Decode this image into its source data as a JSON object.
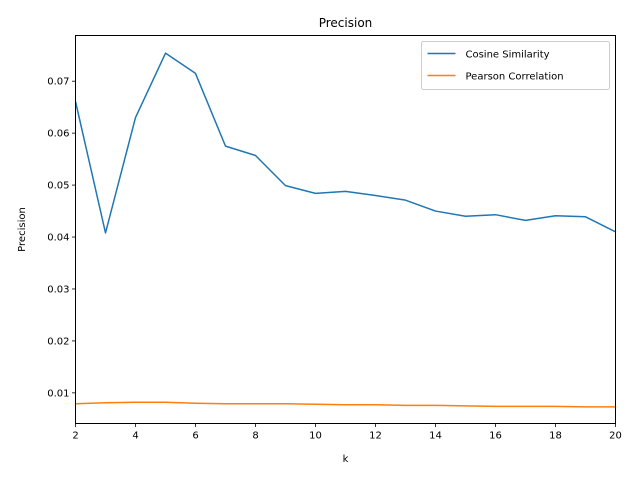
{
  "chart_data": {
    "type": "line",
    "title": "Precision",
    "xlabel": "k",
    "ylabel": "Precision",
    "xlim": [
      2,
      20
    ],
    "ylim": [
      0.0041,
      0.0788
    ],
    "xticks": [
      2,
      4,
      6,
      8,
      10,
      12,
      14,
      16,
      18,
      20
    ],
    "yticks": [
      0.01,
      0.02,
      0.03,
      0.04,
      0.05,
      0.06,
      0.07
    ],
    "xtick_labels": [
      "2",
      "4",
      "6",
      "8",
      "10",
      "12",
      "14",
      "16",
      "18",
      "20"
    ],
    "ytick_labels": [
      "0.01",
      "0.02",
      "0.03",
      "0.04",
      "0.05",
      "0.06",
      "0.07"
    ],
    "grid": false,
    "legend_position": "top-right",
    "x": [
      2,
      3,
      4,
      5,
      6,
      7,
      8,
      9,
      10,
      11,
      12,
      13,
      14,
      15,
      16,
      17,
      18,
      19,
      20
    ],
    "series": [
      {
        "name": "Cosine Similarity",
        "color": "#1f77b4",
        "values": [
          0.0661,
          0.0408,
          0.063,
          0.0754,
          0.0715,
          0.0575,
          0.0557,
          0.0499,
          0.0484,
          0.0488,
          0.048,
          0.0471,
          0.045,
          0.044,
          0.0443,
          0.0432,
          0.0441,
          0.0439,
          0.041
        ]
      },
      {
        "name": "Pearson Correlation",
        "color": "#ff7f0e",
        "values": [
          0.0079,
          0.0081,
          0.0082,
          0.0082,
          0.008,
          0.0079,
          0.0079,
          0.0079,
          0.0078,
          0.0077,
          0.0077,
          0.0076,
          0.0076,
          0.0075,
          0.0074,
          0.0074,
          0.0074,
          0.0073,
          0.0073
        ]
      }
    ]
  }
}
